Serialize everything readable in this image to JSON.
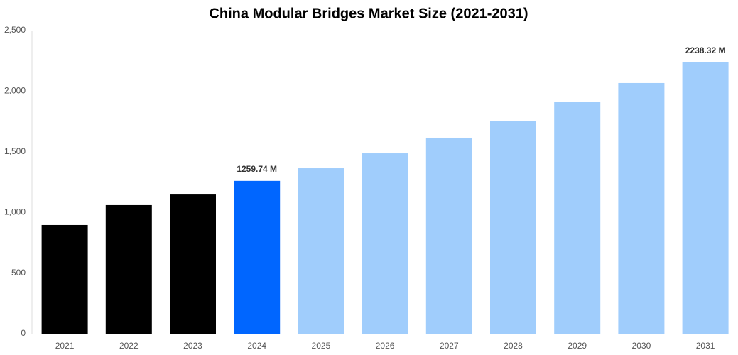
{
  "chart_data": {
    "type": "bar",
    "title": "China Modular Bridges Market Size (2021-2031)",
    "categories": [
      "2021",
      "2022",
      "2023",
      "2024",
      "2025",
      "2026",
      "2027",
      "2028",
      "2029",
      "2030",
      "2031"
    ],
    "values": [
      896,
      1060,
      1153,
      1259.74,
      1364,
      1487,
      1616,
      1756,
      1909,
      2067,
      2238.32
    ],
    "value_labels": [
      null,
      null,
      null,
      "1259.74 M",
      null,
      null,
      null,
      null,
      null,
      null,
      "2238.32 M"
    ],
    "colors": [
      "#000000",
      "#000000",
      "#000000",
      "#0066ff",
      "#a0cdfc",
      "#a0cdfc",
      "#a0cdfc",
      "#a0cdfc",
      "#a0cdfc",
      "#a0cdfc",
      "#a0cdfc"
    ],
    "ylim": [
      0,
      2500
    ],
    "yticks": [
      0,
      500,
      {
        "value": 1000,
        "label": "1,000"
      },
      {
        "value": 1500,
        "label": "1,500"
      },
      {
        "value": 2000,
        "label": "2,000"
      },
      {
        "value": 2500,
        "label": "2,500"
      }
    ],
    "grid": false
  }
}
